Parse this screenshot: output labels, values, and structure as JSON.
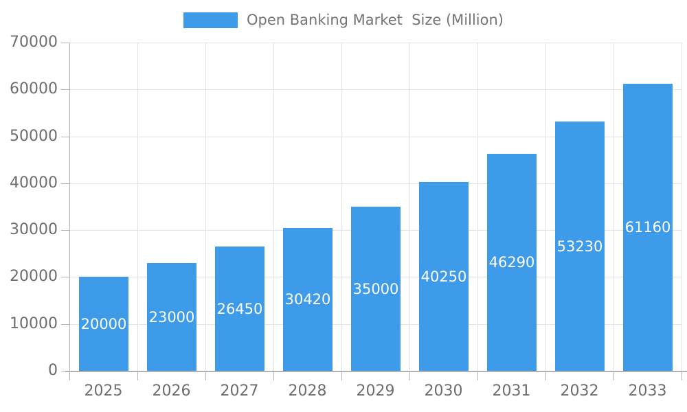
{
  "chart_data": {
    "type": "bar",
    "title": "Open Banking Market  Size (Million)",
    "categories": [
      "2025",
      "2026",
      "2027",
      "2028",
      "2029",
      "2030",
      "2031",
      "2032",
      "2033"
    ],
    "series": [
      {
        "name": "Open Banking Market  Size (Million)",
        "values": [
          20000,
          23000,
          26450,
          30420,
          35000,
          40250,
          46290,
          53230,
          61160
        ]
      }
    ],
    "xlabel": "",
    "ylabel": "",
    "ylim": [
      0,
      70000
    ],
    "y_ticks": [
      0,
      10000,
      20000,
      30000,
      40000,
      50000,
      60000,
      70000
    ],
    "grid": true,
    "legend_position": "top",
    "bar_labels_visible": true
  },
  "colors": {
    "bar": "#3e9bea",
    "bar_label": "#ffffff",
    "grid": "#e3e3e3",
    "axis": "#b3b3b3",
    "axis_text": "#6e6e6e",
    "legend_text": "#757575"
  }
}
